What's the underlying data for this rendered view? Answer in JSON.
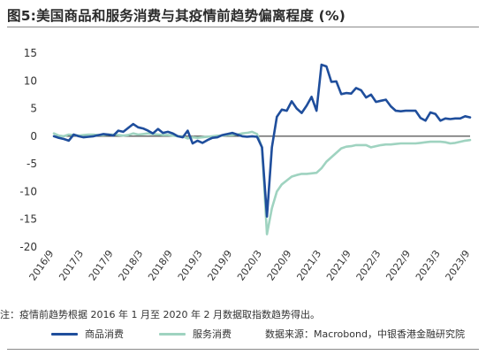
{
  "figure": {
    "title": "图5:美国商品和服务消费与其疫情前趋势偏离程度 (%)",
    "note": "注：疫情前趋势根据 2016 年 1 月至 2020 年 2 月数据取指数趋势得出。",
    "source": "数据来源：Macrobond，中银香港金融研究院"
  },
  "colors": {
    "goods": "#1f4e9c",
    "services": "#9fd3c0",
    "zero_line": "#222222",
    "axis_text": "#333333"
  },
  "chart_data": {
    "type": "line",
    "title": "图5:美国商品和服务消费与其疫情前趋势偏离程度 (%)",
    "xlabel": "",
    "ylabel": "",
    "ylim": [
      -20,
      15
    ],
    "yticks": [
      15,
      10,
      5,
      0,
      -5,
      -10,
      -15,
      -20
    ],
    "x_range": [
      "2016/9",
      "2023/9"
    ],
    "x_tick_labels": [
      "2016/9",
      "2017/3",
      "2017/9",
      "2018/3",
      "2018/9",
      "2019/3",
      "2019/9",
      "2020/3",
      "2020/9",
      "2021/3",
      "2021/9",
      "2022/3",
      "2022/9",
      "2023/3",
      "2023/9"
    ],
    "grid": false,
    "legend_position": "bottom",
    "series": [
      {
        "name": "商品消费",
        "values": [
          [
            "2016/09",
            0.0
          ],
          [
            "2016/10",
            -0.3
          ],
          [
            "2016/11",
            -0.5
          ],
          [
            "2016/12",
            -0.8
          ],
          [
            "2017/01",
            0.3
          ],
          [
            "2017/02",
            0.0
          ],
          [
            "2017/03",
            -0.2
          ],
          [
            "2017/04",
            -0.1
          ],
          [
            "2017/05",
            0.0
          ],
          [
            "2017/06",
            0.2
          ],
          [
            "2017/07",
            0.4
          ],
          [
            "2017/08",
            0.3
          ],
          [
            "2017/09",
            0.1
          ],
          [
            "2017/10",
            1.0
          ],
          [
            "2017/11",
            0.8
          ],
          [
            "2017/12",
            1.5
          ],
          [
            "2018/01",
            2.2
          ],
          [
            "2018/02",
            1.6
          ],
          [
            "2018/03",
            1.4
          ],
          [
            "2018/04",
            1.0
          ],
          [
            "2018/05",
            0.5
          ],
          [
            "2018/06",
            1.3
          ],
          [
            "2018/07",
            0.6
          ],
          [
            "2018/08",
            0.8
          ],
          [
            "2018/09",
            0.5
          ],
          [
            "2018/10",
            0.0
          ],
          [
            "2018/11",
            -0.2
          ],
          [
            "2018/12",
            1.0
          ],
          [
            "2019/01",
            -1.3
          ],
          [
            "2019/02",
            -0.8
          ],
          [
            "2019/03",
            -1.2
          ],
          [
            "2019/04",
            -0.7
          ],
          [
            "2019/05",
            -0.3
          ],
          [
            "2019/06",
            -0.2
          ],
          [
            "2019/07",
            0.2
          ],
          [
            "2019/08",
            0.4
          ],
          [
            "2019/09",
            0.6
          ],
          [
            "2019/10",
            0.3
          ],
          [
            "2019/11",
            0.0
          ],
          [
            "2019/12",
            -0.1
          ],
          [
            "2020/01",
            0.0
          ],
          [
            "2020/02",
            -0.1
          ],
          [
            "2020/03",
            -2.0
          ],
          [
            "2020/04",
            -14.5
          ],
          [
            "2020/05",
            -2.0
          ],
          [
            "2020/06",
            3.5
          ],
          [
            "2020/07",
            4.8
          ],
          [
            "2020/08",
            4.6
          ],
          [
            "2020/09",
            6.3
          ],
          [
            "2020/10",
            5.0
          ],
          [
            "2020/11",
            4.2
          ],
          [
            "2020/12",
            5.5
          ],
          [
            "2021/01",
            7.1
          ],
          [
            "2021/02",
            4.6
          ],
          [
            "2021/03",
            12.9
          ],
          [
            "2021/04",
            12.6
          ],
          [
            "2021/05",
            9.8
          ],
          [
            "2021/06",
            9.9
          ],
          [
            "2021/07",
            7.6
          ],
          [
            "2021/08",
            7.8
          ],
          [
            "2021/09",
            7.7
          ],
          [
            "2021/10",
            8.7
          ],
          [
            "2021/11",
            8.3
          ],
          [
            "2021/12",
            7.0
          ],
          [
            "2022/01",
            7.5
          ],
          [
            "2022/02",
            6.2
          ],
          [
            "2022/03",
            6.4
          ],
          [
            "2022/04",
            6.6
          ],
          [
            "2022/05",
            5.4
          ],
          [
            "2022/06",
            4.6
          ],
          [
            "2022/07",
            4.5
          ],
          [
            "2022/08",
            4.6
          ],
          [
            "2022/09",
            4.6
          ],
          [
            "2022/10",
            4.6
          ],
          [
            "2022/11",
            3.3
          ],
          [
            "2022/12",
            2.8
          ],
          [
            "2023/01",
            4.3
          ],
          [
            "2023/02",
            4.0
          ],
          [
            "2023/03",
            2.8
          ],
          [
            "2023/04",
            3.2
          ],
          [
            "2023/05",
            3.1
          ],
          [
            "2023/06",
            3.2
          ],
          [
            "2023/07",
            3.2
          ],
          [
            "2023/08",
            3.6
          ],
          [
            "2023/09",
            3.4
          ]
        ]
      },
      {
        "name": "服务消费",
        "values": [
          [
            "2016/09",
            0.5
          ],
          [
            "2016/10",
            0.1
          ],
          [
            "2016/11",
            0.0
          ],
          [
            "2016/12",
            0.3
          ],
          [
            "2017/01",
            0.2
          ],
          [
            "2017/02",
            0.1
          ],
          [
            "2017/03",
            0.2
          ],
          [
            "2017/04",
            0.3
          ],
          [
            "2017/05",
            0.3
          ],
          [
            "2017/06",
            0.2
          ],
          [
            "2017/07",
            0.2
          ],
          [
            "2017/08",
            0.3
          ],
          [
            "2017/09",
            0.3
          ],
          [
            "2017/10",
            0.2
          ],
          [
            "2017/11",
            0.1
          ],
          [
            "2017/12",
            0.2
          ],
          [
            "2018/01",
            0.5
          ],
          [
            "2018/02",
            0.3
          ],
          [
            "2018/03",
            0.4
          ],
          [
            "2018/04",
            0.5
          ],
          [
            "2018/05",
            0.4
          ],
          [
            "2018/06",
            0.3
          ],
          [
            "2018/07",
            0.2
          ],
          [
            "2018/08",
            0.2
          ],
          [
            "2018/09",
            0.1
          ],
          [
            "2018/10",
            0.0
          ],
          [
            "2018/11",
            0.0
          ],
          [
            "2018/12",
            -0.4
          ],
          [
            "2019/01",
            -0.2
          ],
          [
            "2019/02",
            -0.3
          ],
          [
            "2019/03",
            -0.2
          ],
          [
            "2019/04",
            -0.1
          ],
          [
            "2019/05",
            0.0
          ],
          [
            "2019/06",
            0.1
          ],
          [
            "2019/07",
            0.1
          ],
          [
            "2019/08",
            0.2
          ],
          [
            "2019/09",
            0.2
          ],
          [
            "2019/10",
            0.3
          ],
          [
            "2019/11",
            0.5
          ],
          [
            "2019/12",
            0.6
          ],
          [
            "2020/01",
            0.8
          ],
          [
            "2020/02",
            0.4
          ],
          [
            "2020/03",
            -2.0
          ],
          [
            "2020/04",
            -17.7
          ],
          [
            "2020/05",
            -13.0
          ],
          [
            "2020/06",
            -10.0
          ],
          [
            "2020/07",
            -8.7
          ],
          [
            "2020/08",
            -8.0
          ],
          [
            "2020/09",
            -7.3
          ],
          [
            "2020/10",
            -7.0
          ],
          [
            "2020/11",
            -6.8
          ],
          [
            "2020/12",
            -6.8
          ],
          [
            "2021/01",
            -6.7
          ],
          [
            "2021/02",
            -6.6
          ],
          [
            "2021/03",
            -5.8
          ],
          [
            "2021/04",
            -4.6
          ],
          [
            "2021/05",
            -3.8
          ],
          [
            "2021/06",
            -3.0
          ],
          [
            "2021/07",
            -2.2
          ],
          [
            "2021/08",
            -1.9
          ],
          [
            "2021/09",
            -1.8
          ],
          [
            "2021/10",
            -1.6
          ],
          [
            "2021/11",
            -1.6
          ],
          [
            "2021/12",
            -1.6
          ],
          [
            "2022/01",
            -2.0
          ],
          [
            "2022/02",
            -1.8
          ],
          [
            "2022/03",
            -1.6
          ],
          [
            "2022/04",
            -1.5
          ],
          [
            "2022/05",
            -1.5
          ],
          [
            "2022/06",
            -1.4
          ],
          [
            "2022/07",
            -1.3
          ],
          [
            "2022/08",
            -1.3
          ],
          [
            "2022/09",
            -1.3
          ],
          [
            "2022/10",
            -1.3
          ],
          [
            "2022/11",
            -1.2
          ],
          [
            "2022/12",
            -1.1
          ],
          [
            "2023/01",
            -1.0
          ],
          [
            "2023/02",
            -1.0
          ],
          [
            "2023/03",
            -1.0
          ],
          [
            "2023/04",
            -1.1
          ],
          [
            "2023/05",
            -1.3
          ],
          [
            "2023/06",
            -1.2
          ],
          [
            "2023/07",
            -1.0
          ],
          [
            "2023/08",
            -0.8
          ],
          [
            "2023/09",
            -0.7
          ]
        ]
      }
    ]
  }
}
